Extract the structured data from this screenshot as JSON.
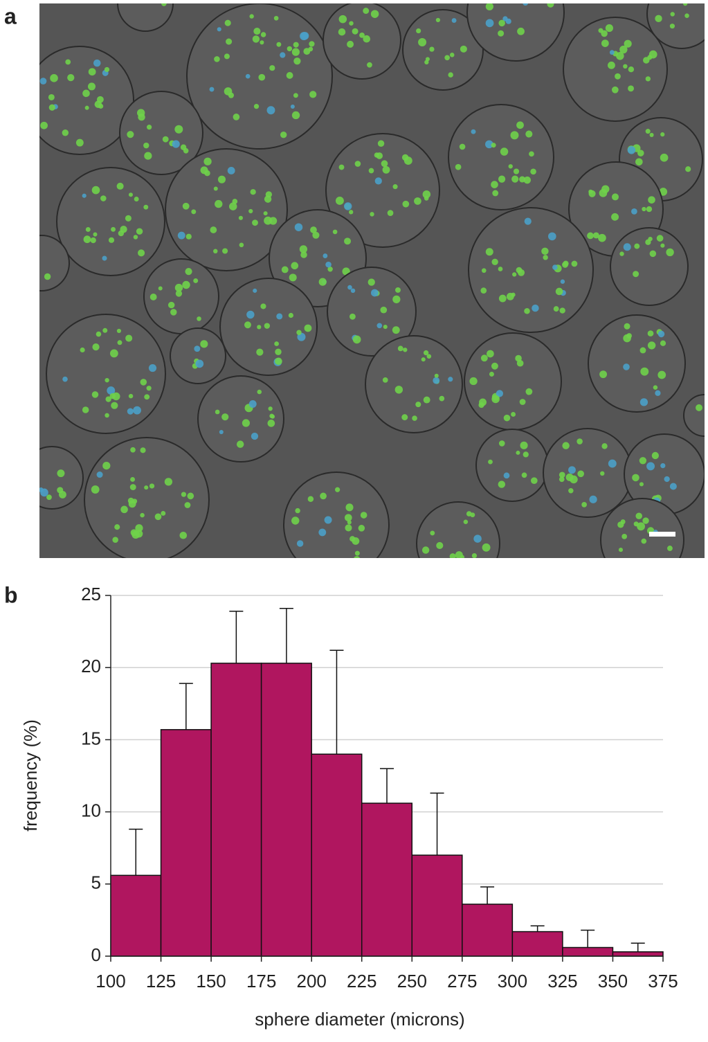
{
  "panel_labels": [
    "a",
    "b"
  ],
  "chart_data": {
    "type": "histogram",
    "xlabel": "sphere diameter (microns)",
    "ylabel": "frequency (%)",
    "bins": [
      100,
      125,
      150,
      175,
      200,
      225,
      250,
      275,
      300,
      325,
      350,
      375
    ],
    "values": [
      5.6,
      15.7,
      20.3,
      20.3,
      14.0,
      10.6,
      7.0,
      3.6,
      1.7,
      0.6,
      0.3
    ],
    "errors": [
      3.2,
      3.2,
      3.6,
      3.8,
      7.2,
      2.4,
      4.3,
      1.2,
      0.4,
      1.2,
      0.6
    ],
    "color": "#b0165f",
    "xlim": [
      100,
      375
    ],
    "xticks": [
      100,
      125,
      150,
      175,
      200,
      225,
      250,
      275,
      300,
      325,
      350,
      375
    ],
    "ylim": [
      0,
      25
    ],
    "yticks": [
      0,
      5,
      10,
      15,
      20,
      25
    ],
    "grid": true
  }
}
